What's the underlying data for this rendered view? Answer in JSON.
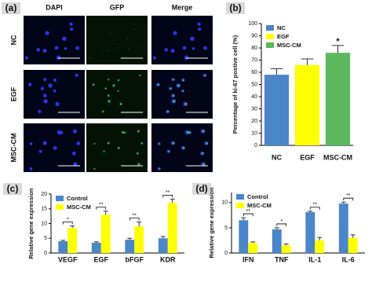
{
  "chart_data": [
    {
      "type": "image-grid",
      "panel_label": "(a)",
      "columns": [
        "DAPI",
        "GFP",
        "Merge"
      ],
      "rows": [
        "NC",
        "EGF",
        "MSC-CM"
      ]
    },
    {
      "type": "bar",
      "panel_label": "(b)",
      "y_label": "Percentage of ki-67 postive cell (%)",
      "categories": [
        "NC",
        "EGF",
        "MSC-CM"
      ],
      "values": [
        58,
        66,
        76
      ],
      "errors": [
        5,
        5,
        6
      ],
      "colors": [
        "#4a86c8",
        "#ffff00",
        "#5cb85c"
      ],
      "significance": [
        null,
        null,
        "*"
      ],
      "ylim": [
        0,
        100
      ],
      "yticks": [
        0,
        10,
        20,
        30,
        40,
        50,
        60,
        70,
        80,
        90,
        100
      ],
      "legend": "top-left"
    },
    {
      "type": "grouped-bar",
      "panel_label": "(c)",
      "y_label": "Relative gene expression",
      "categories": [
        "VEGF",
        "EGF",
        "bFGF",
        "KDR"
      ],
      "series": [
        {
          "name": "Control",
          "color": "#4a86c8",
          "values": [
            4,
            3.5,
            4.5,
            5
          ],
          "errors": [
            0.3,
            0.3,
            0.5,
            0.6
          ]
        },
        {
          "name": "MSC-CM",
          "color": "#ffff00",
          "values": [
            8.5,
            13,
            9,
            17
          ],
          "errors": [
            0.7,
            1.2,
            1.5,
            1.3
          ]
        }
      ],
      "significance": [
        "*",
        "**",
        "**",
        "**"
      ],
      "ylim": [
        0,
        20
      ],
      "yticks": [
        0,
        5,
        10,
        15,
        20
      ],
      "legend": "top-left"
    },
    {
      "type": "grouped-bar",
      "panel_label": "(d)",
      "y_label": "Relative gene expression",
      "categories": [
        "IFN",
        "TNF",
        "IL-1",
        "IL-6"
      ],
      "series": [
        {
          "name": "Control",
          "color": "#4a86c8",
          "values": [
            6.5,
            4.7,
            8.1,
            9.8
          ],
          "errors": [
            0.5,
            0.3,
            0.2,
            0.3
          ]
        },
        {
          "name": "MSC-CM",
          "color": "#ffff00",
          "values": [
            2,
            1.5,
            2.5,
            3
          ],
          "errors": [
            0.2,
            0.3,
            0.6,
            0.6
          ]
        }
      ],
      "significance": [
        "**",
        "*",
        "**",
        "**"
      ],
      "ylim": [
        0,
        12
      ],
      "yticks": [
        0,
        5,
        10
      ],
      "legend": "top-left"
    }
  ]
}
